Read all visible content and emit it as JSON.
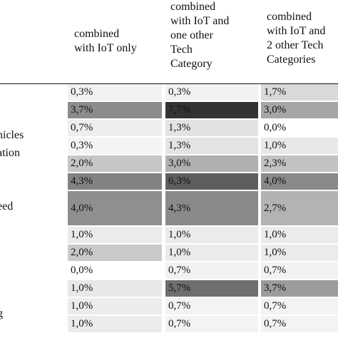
{
  "headers": [
    "combined\nwith IoT only",
    "combined\nwith IoT and\none other\nTech\nCategory",
    "combined\nwith IoT and\n2 other Tech\nCategories"
  ],
  "row_labels": [
    {
      "text": "nicles",
      "row": 2
    },
    {
      "text": "ation",
      "row": 3
    },
    {
      "text": "eed",
      "row": 6
    },
    {
      "text": "g",
      "row": 11
    }
  ],
  "rows": [
    {
      "values": [
        "0,3%",
        "0,3%",
        "1,7%"
      ],
      "shades": [
        "#f2f2f2",
        "#f2f2f2",
        "#d9d9d9"
      ],
      "span": 1
    },
    {
      "values": [
        "3,7%",
        "7,7%",
        "3,0%"
      ],
      "shades": [
        "#8c8c8c",
        "#333333",
        "#a6a6a6"
      ],
      "span": 1
    },
    {
      "values": [
        "0,7%",
        "1,3%",
        "0,0%"
      ],
      "shades": [
        "#eeeeee",
        "#e3e3e3",
        "#ffffff"
      ],
      "span": 1
    },
    {
      "values": [
        "0,3%",
        "1,3%",
        "1,0%"
      ],
      "shades": [
        "#f4f4f4",
        "#e3e3e3",
        "#e8e8e8"
      ],
      "span": 1
    },
    {
      "values": [
        "2,0%",
        "3,0%",
        "2,3%"
      ],
      "shades": [
        "#c6c6c6",
        "#b0b0b0",
        "#c2c2c2"
      ],
      "span": 1
    },
    {
      "values": [
        "4,3%",
        "6,3%",
        "4,0%"
      ],
      "shades": [
        "#828282",
        "#5e5e5e",
        "#8a8a8a"
      ],
      "span": 1
    },
    {
      "values": [
        "4,0%",
        "4,3%",
        "2,7%"
      ],
      "shades": [
        "#8f8f8f",
        "#8a8a8a",
        "#b3b3b3"
      ],
      "span": 2
    },
    {
      "values": [
        "1,0%",
        "1,0%",
        "1,0%"
      ],
      "shades": [
        "#ebebeb",
        "#ebebeb",
        "#ebebeb"
      ],
      "span": 1
    },
    {
      "values": [
        "2,0%",
        "1,0%",
        "1,0%"
      ],
      "shades": [
        "#c9c9c9",
        "#ebebeb",
        "#ebebeb"
      ],
      "span": 1
    },
    {
      "values": [
        "0,0%",
        "0,7%",
        "0,7%"
      ],
      "shades": [
        "#ffffff",
        "#f2f2f2",
        "#f2f2f2"
      ],
      "span": 1
    },
    {
      "values": [
        "1,0%",
        "5,7%",
        "3,7%"
      ],
      "shades": [
        "#e8e8e8",
        "#6e6e6e",
        "#9c9c9c"
      ],
      "span": 1
    },
    {
      "values": [
        "1,0%",
        "0,7%",
        "0,7%"
      ],
      "shades": [
        "#ececec",
        "#f3f3f3",
        "#f3f3f3"
      ],
      "span": 1
    },
    {
      "values": [
        "1,0%",
        "0,7%",
        "0,7%"
      ],
      "shades": [
        "#ececec",
        "#f3f3f3",
        "#f3f3f3"
      ],
      "span": 1
    }
  ]
}
